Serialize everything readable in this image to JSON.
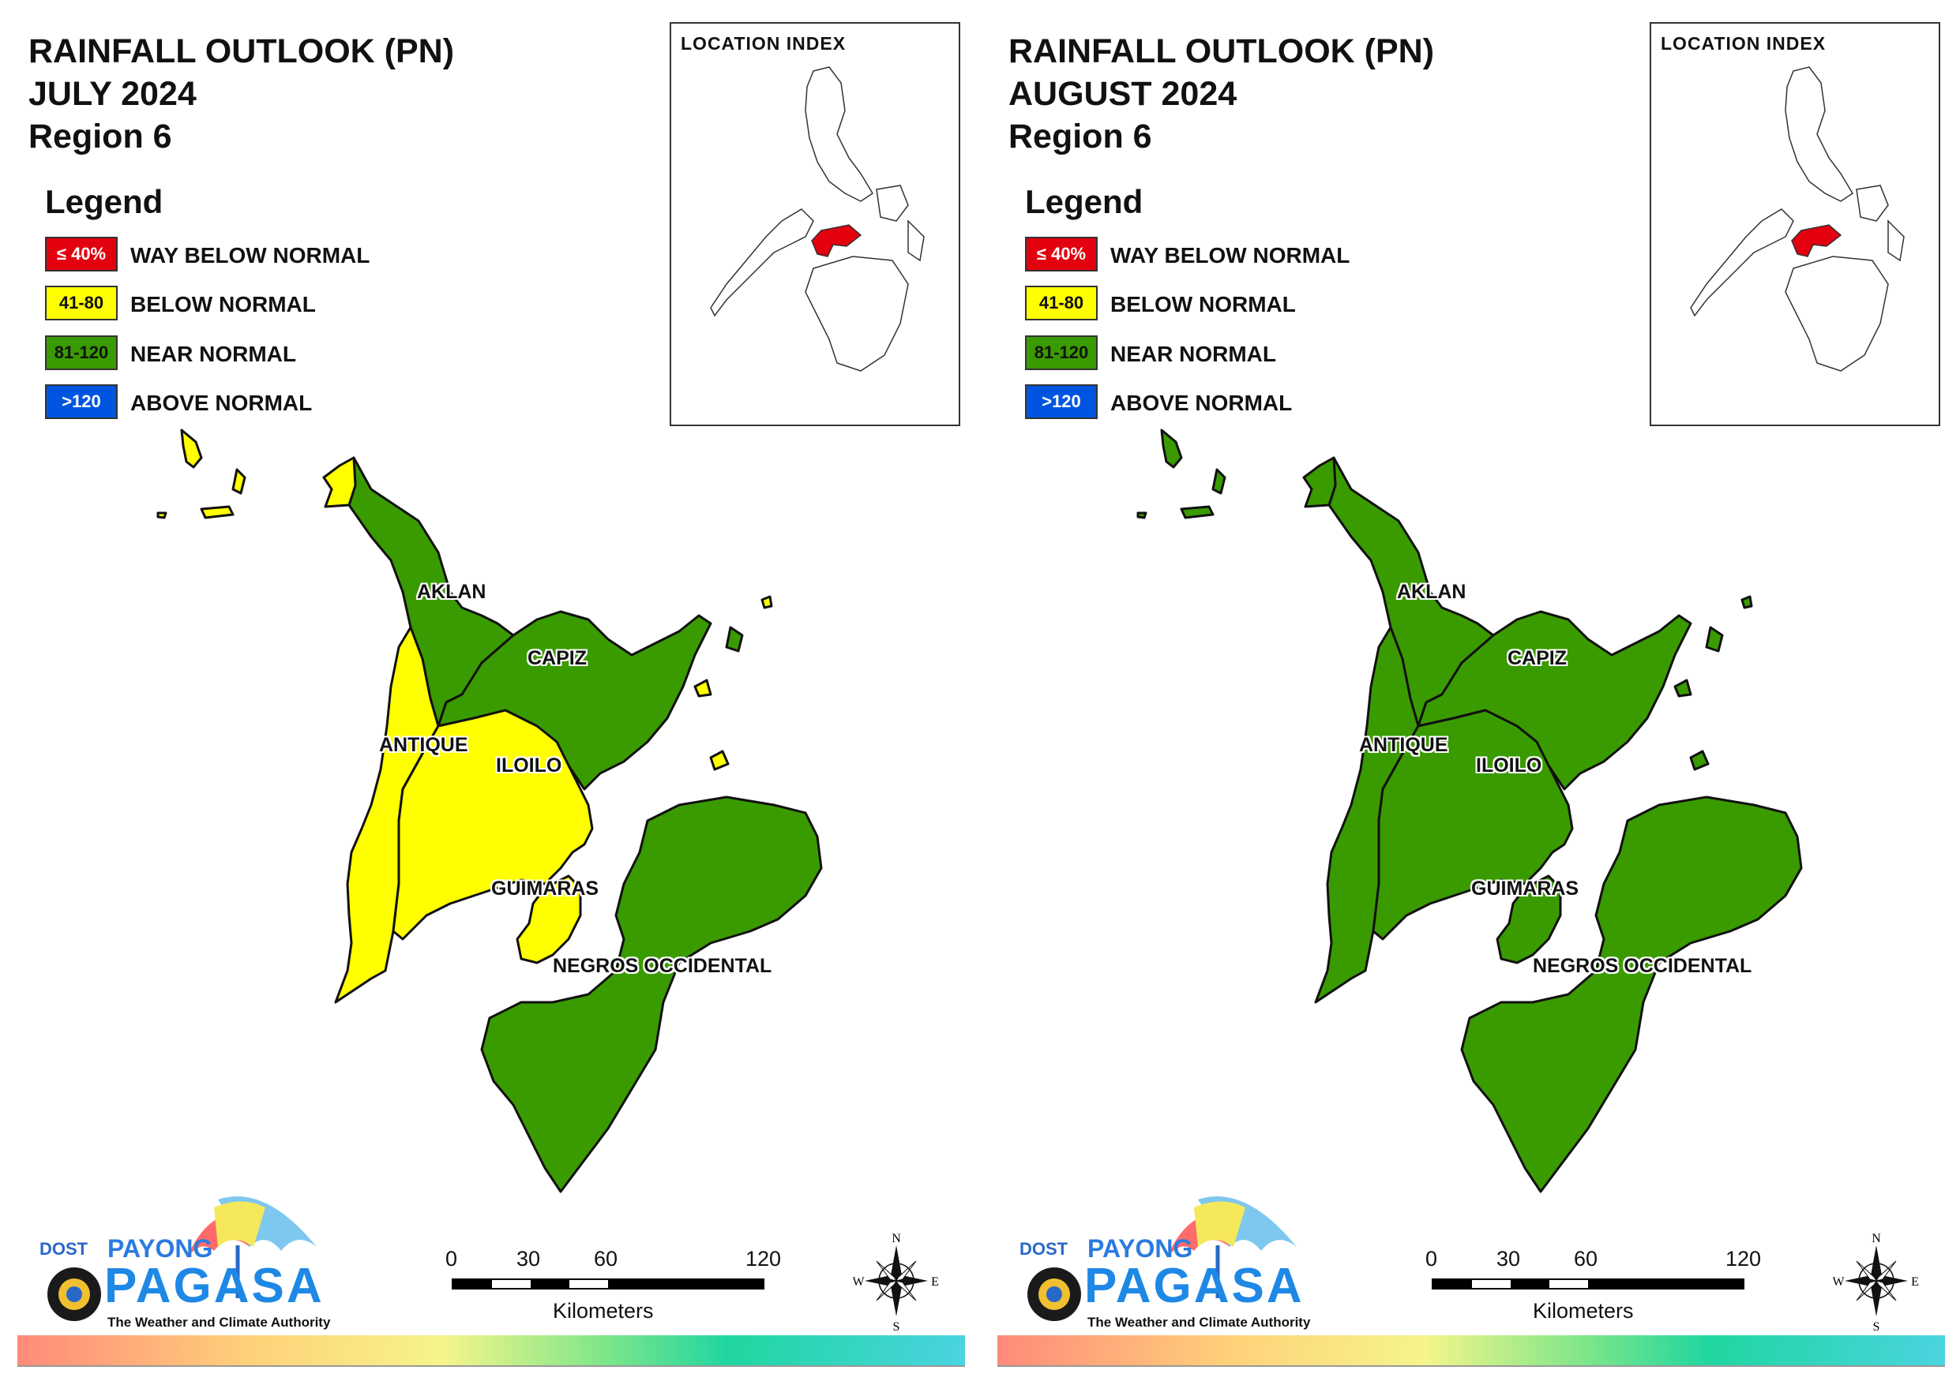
{
  "panels": [
    {
      "title_lines": [
        "RAINFALL OUTLOOK (PN)",
        "JULY 2024",
        "Region 6"
      ],
      "provinces": [
        {
          "name": "AKLAN",
          "category": "near_normal"
        },
        {
          "name": "CAPIZ",
          "category": "near_normal"
        },
        {
          "name": "ANTIQUE",
          "category": "below_normal"
        },
        {
          "name": "ILOILO",
          "category": "below_normal"
        },
        {
          "name": "GUIMARAS",
          "category": "below_normal"
        },
        {
          "name": "NEGROS OCCIDENTAL",
          "category": "near_normal"
        }
      ]
    },
    {
      "title_lines": [
        "RAINFALL OUTLOOK (PN)",
        "AUGUST 2024",
        "Region 6"
      ],
      "provinces": [
        {
          "name": "AKLAN",
          "category": "near_normal"
        },
        {
          "name": "CAPIZ",
          "category": "near_normal"
        },
        {
          "name": "ANTIQUE",
          "category": "near_normal"
        },
        {
          "name": "ILOILO",
          "category": "near_normal"
        },
        {
          "name": "GUIMARAS",
          "category": "near_normal"
        },
        {
          "name": "NEGROS OCCIDENTAL",
          "category": "near_normal"
        }
      ]
    }
  ],
  "legend": {
    "title": "Legend",
    "items": [
      {
        "key": "way_below_normal",
        "range": "≤ 40%",
        "label": "WAY BELOW NORMAL",
        "color": "#e3000f",
        "text_color": "#ffffff"
      },
      {
        "key": "below_normal",
        "range": "41-80",
        "label": "BELOW NORMAL",
        "color": "#ffff00",
        "text_color": "#111111"
      },
      {
        "key": "near_normal",
        "range": "81-120",
        "label": "NEAR NORMAL",
        "color": "#3a9b00",
        "text_color": "#111111"
      },
      {
        "key": "above_normal",
        "range": ">120",
        "label": "ABOVE NORMAL",
        "color": "#0055e0",
        "text_color": "#ffffff"
      }
    ]
  },
  "inset": {
    "title": "LOCATION INDEX",
    "highlight_color": "#e3000f"
  },
  "scale_bar": {
    "ticks": [
      "0",
      "30",
      "60",
      "120"
    ],
    "unit": "Kilometers"
  },
  "compass": {
    "n": "N",
    "s": "S",
    "e": "E",
    "w": "W"
  },
  "logo": {
    "dost": "DOST",
    "payong": "PAYONG",
    "pagasa": "PAGASA",
    "tagline": "The Weather and Climate Authority"
  }
}
